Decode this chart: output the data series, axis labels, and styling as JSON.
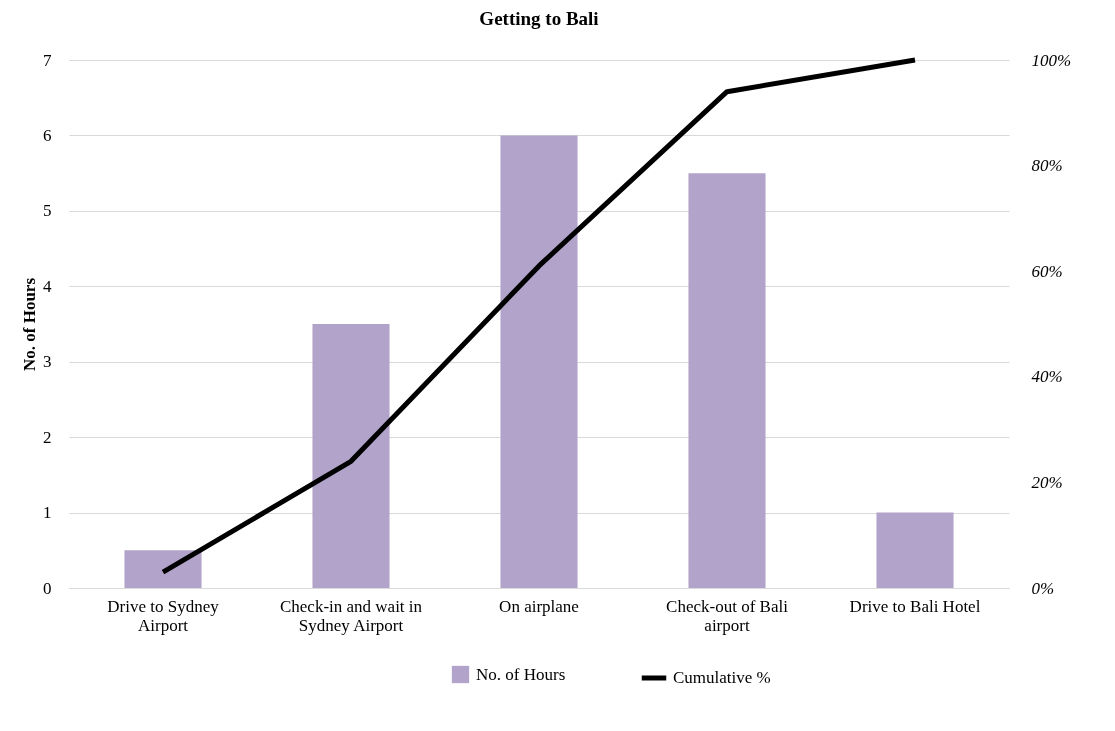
{
  "chart_data": {
    "type": "bar",
    "title": "Getting to Bali",
    "ylabel": "No. of Hours",
    "categories": [
      "Drive to Sydney Airport",
      "Check-in and wait in Sydney Airport",
      "On airplane",
      "Check-out of Bali airport",
      "Drive to Bali Hotel"
    ],
    "series": [
      {
        "name": "No. of Hours",
        "color": "#b1a3c9",
        "values": [
          0.5,
          3.5,
          6,
          5.5,
          1
        ]
      },
      {
        "name": "Cumulative %",
        "type": "line",
        "axis": "y2",
        "color": "#000000",
        "values": [
          3,
          24,
          61,
          94,
          100
        ]
      }
    ],
    "ylim": [
      0,
      7
    ],
    "yticks": [
      0,
      1,
      2,
      3,
      4,
      5,
      6,
      7
    ],
    "y2lim": [
      0,
      100
    ],
    "y2ticks": [
      {
        "value": 0,
        "label": "0%"
      },
      {
        "value": 20,
        "label": "20%"
      },
      {
        "value": 40,
        "label": "40%"
      },
      {
        "value": 60,
        "label": "60%"
      },
      {
        "value": 80,
        "label": "80%"
      },
      {
        "value": 100,
        "label": "100%"
      }
    ],
    "grid": "y",
    "legend": "bottom",
    "marker": "none",
    "line_style": "solid"
  }
}
